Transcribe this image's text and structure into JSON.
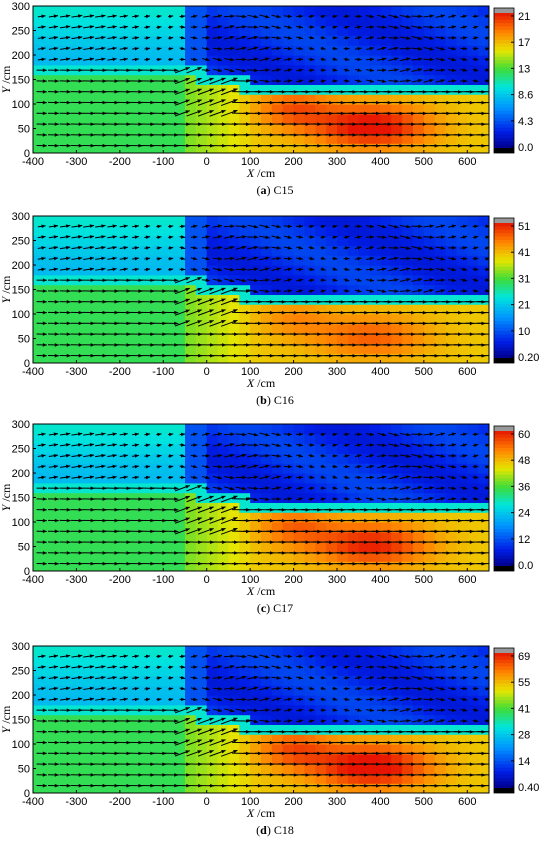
{
  "chart_data": [
    {
      "type": "heatmap",
      "caption": {
        "letter": "(a)",
        "case": "C15"
      },
      "xlabel": {
        "symbol": "X",
        "unit": "/cm"
      },
      "ylabel": {
        "symbol": "Y",
        "unit": "/cm"
      },
      "xlim": [
        -400,
        650
      ],
      "ylim": [
        0,
        300
      ],
      "x_ticks": [
        -400,
        -300,
        -200,
        -100,
        0,
        100,
        200,
        300,
        400,
        500,
        600
      ],
      "y_ticks": [
        0,
        50,
        100,
        150,
        200,
        250,
        300
      ],
      "colorbar": {
        "min": 0.0,
        "max": 21,
        "tick_labels": [
          "21",
          "17",
          "13",
          "8.6",
          "4.3",
          "0.0"
        ]
      },
      "vector_field": true
    },
    {
      "type": "heatmap",
      "caption": {
        "letter": "(b)",
        "case": "C16"
      },
      "xlabel": {
        "symbol": "X",
        "unit": "/cm"
      },
      "ylabel": {
        "symbol": "Y",
        "unit": "/cm"
      },
      "xlim": [
        -400,
        650
      ],
      "ylim": [
        0,
        300
      ],
      "x_ticks": [
        -400,
        -300,
        -200,
        -100,
        0,
        100,
        200,
        300,
        400,
        500,
        600
      ],
      "y_ticks": [
        0,
        50,
        100,
        150,
        200,
        250,
        300
      ],
      "colorbar": {
        "min": 0.2,
        "max": 51,
        "tick_labels": [
          "51",
          "41",
          "31",
          "21",
          "10",
          "0.20"
        ]
      },
      "vector_field": true
    },
    {
      "type": "heatmap",
      "caption": {
        "letter": "(c)",
        "case": "C17"
      },
      "xlabel": {
        "symbol": "X",
        "unit": "/cm"
      },
      "ylabel": {
        "symbol": "Y",
        "unit": "/cm"
      },
      "xlim": [
        -400,
        650
      ],
      "ylim": [
        0,
        300
      ],
      "x_ticks": [
        -400,
        -300,
        -200,
        -100,
        0,
        100,
        200,
        300,
        400,
        500,
        600
      ],
      "y_ticks": [
        0,
        50,
        100,
        150,
        200,
        250,
        300
      ],
      "colorbar": {
        "min": 0.0,
        "max": 60,
        "tick_labels": [
          "60",
          "48",
          "36",
          "24",
          "12",
          "0.0"
        ]
      },
      "vector_field": true
    },
    {
      "type": "heatmap",
      "caption": {
        "letter": "(d)",
        "case": "C18"
      },
      "xlabel": {
        "symbol": "X",
        "unit": "/cm"
      },
      "ylabel": {
        "symbol": "Y",
        "unit": "/cm"
      },
      "xlim": [
        -400,
        650
      ],
      "ylim": [
        0,
        300
      ],
      "x_ticks": [
        -400,
        -300,
        -200,
        -100,
        0,
        100,
        200,
        300,
        400,
        500,
        600
      ],
      "y_ticks": [
        0,
        50,
        100,
        150,
        200,
        250,
        300
      ],
      "colorbar": {
        "min": 0.4,
        "max": 69,
        "tick_labels": [
          "69",
          "55",
          "41",
          "28",
          "14",
          "0.40"
        ]
      },
      "vector_field": true
    }
  ]
}
